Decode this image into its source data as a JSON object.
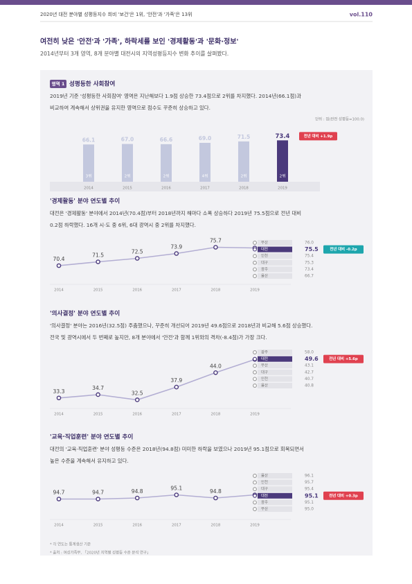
{
  "header": {
    "running_title": "2020년 대전 분야별 성평등지수 희비 '보건'은 1위, '안전'과 '가족'은 13위",
    "volume": "vol.110"
  },
  "article": {
    "title": "여전히 낮은 '안전'과 '가족', 하락세를 보인 '경제활동'과 '문화·정보'",
    "subtitle": "2014년부터 3개 영역, 8개 분야별 대전시의 지역성평등지수 변화 추이를 살펴봤다."
  },
  "sections": [
    {
      "badge": "영역 1",
      "heading": "성평등한 사회참여",
      "body": [
        "2019년 기준 '성평등한 사회참여' 영역은 지난해보다 1.9점 상승한 73.4점으로 2위를 차지했다. 2014년(66.1점)과",
        "비교하여 계속해서 상위권을 유지한 영역으로 점수도 꾸준히 상승하고 있다."
      ],
      "unit": "단위 : 점(완전 성평등=100.0)"
    },
    {
      "heading": "'경제활동' 분야 연도별 추이",
      "body": [
        "대전은 '경제활동' 분야에서 2014년(70.4점)부터 2018년까지 해마다 소폭 상승하다 2019년 75.5점으로 전년 대비",
        "0.2점 하락했다. 16개 시·도 중 6위, 6대 광역시 중 2위를 차지했다."
      ]
    },
    {
      "heading": "'의사결정' 분야 연도별 추이",
      "body": [
        "'의사결정' 분야는 2016년(32.5점) 주춤했으나, 꾸준히 개선되어 2019년 49.6점으로 2018년과 비교해 5.6점 상승했다.",
        "전국 및 광역시에서 두 번째로 높지만, 8개 분야에서 '안전'과 함께 1위와의 격차(-8.4점)가 가장 크다."
      ]
    },
    {
      "heading": "'교육·직업훈련' 분야 연도별 추이",
      "body": [
        "대전의 '교육·직업훈련' 분야 성평등 수준은 2018년(94.8점) 미미한 하락을 보였으나 2019년 95.1점으로 회복되면서",
        "높은 수준을 계속해서 유지하고 있다."
      ]
    }
  ],
  "chart_data": [
    {
      "type": "bar",
      "categories": [
        "2014",
        "2015",
        "2016",
        "2017",
        "2018",
        "2019"
      ],
      "values": [
        66.1,
        67.0,
        66.6,
        69.0,
        71.5,
        73.4
      ],
      "value_labels": [
        "66.1",
        "67.0",
        "66.6",
        "69.0",
        "71.5",
        "73.4"
      ],
      "rank_labels": [
        "3위",
        "2위",
        "2위",
        "4위",
        "2위",
        "2위"
      ],
      "colors": [
        "#c3c8de",
        "#c3c8de",
        "#c3c8de",
        "#c3c8de",
        "#c3c8de",
        "#4b3a7c"
      ],
      "ylim": [
        0,
        80
      ],
      "callout": "전년 대비 +1.9p",
      "callout_color": "#e0414f"
    },
    {
      "type": "line",
      "categories": [
        "2014",
        "2015",
        "2016",
        "2017",
        "2018",
        "2019"
      ],
      "values": [
        70.4,
        71.5,
        72.5,
        73.9,
        75.7,
        75.5
      ],
      "value_labels": [
        "70.4",
        "71.5",
        "72.5",
        "73.9",
        "75.7",
        null
      ],
      "color": "#4b3a7c",
      "line_color": "#b3aed3",
      "ylim": [
        68,
        78
      ],
      "ranking": {
        "regions": [
          "부산",
          "대전",
          "인천",
          "대구",
          "광주",
          "울산"
        ],
        "values": [
          76.0,
          75.5,
          75.4,
          75.3,
          73.4,
          66.7
        ],
        "value_labels": [
          "76.0",
          "75.5",
          "75.4",
          "75.3",
          "73.4",
          "66.7"
        ],
        "colors": [
          "#e3e3e8",
          "#4b3a7c",
          "#e3e3e8",
          "#e3e3e8",
          "#e3e3e8",
          "#e3e3e8"
        ]
      },
      "callout": "전년 대비 -0.2p",
      "callout_color": "#1ea6ad"
    },
    {
      "type": "line",
      "categories": [
        "2014",
        "2015",
        "2016",
        "2017",
        "2018",
        "2019"
      ],
      "values": [
        33.3,
        34.7,
        32.5,
        37.9,
        44.0,
        49.6
      ],
      "value_labels": [
        "33.3",
        "34.7",
        "32.5",
        "37.9",
        "44.0",
        null
      ],
      "color": "#4b3a7c",
      "line_color": "#b3aed3",
      "ylim": [
        30,
        52
      ],
      "ranking": {
        "regions": [
          "광주",
          "대전",
          "부산",
          "대구",
          "인천",
          "울산"
        ],
        "values": [
          58.0,
          49.6,
          43.1,
          42.7,
          40.7,
          40.8
        ],
        "value_labels": [
          "58.0",
          "49.6",
          "43.1",
          "42.7",
          "40.7",
          "40.8"
        ],
        "colors": [
          "#e3e3e8",
          "#4b3a7c",
          "#e3e3e8",
          "#e3e3e8",
          "#e3e3e8",
          "#e3e3e8"
        ]
      },
      "callout": "전년 대비 +5.6p",
      "callout_color": "#e0414f"
    },
    {
      "type": "line",
      "categories": [
        "2014",
        "2015",
        "2016",
        "2017",
        "2018",
        "2019"
      ],
      "values": [
        94.7,
        94.7,
        94.8,
        95.1,
        94.8,
        95.1
      ],
      "value_labels": [
        "94.7",
        "94.7",
        "94.8",
        "95.1",
        "94.8",
        null
      ],
      "color": "#4b3a7c",
      "line_color": "#b3aed3",
      "ylim": [
        94,
        96
      ],
      "ranking": {
        "regions": [
          "울산",
          "인천",
          "대구",
          "대전",
          "광주",
          "부산"
        ],
        "values": [
          96.1,
          95.7,
          95.4,
          95.1,
          95.1,
          95.0
        ],
        "value_labels": [
          "96.1",
          "95.7",
          "95.4",
          "95.1",
          "95.1",
          "95.0"
        ],
        "colors": [
          "#e3e3e8",
          "#e3e3e8",
          "#e3e3e8",
          "#4b3a7c",
          "#e3e3e8",
          "#e3e3e8"
        ]
      },
      "callout": "전년 대비 +0.3p",
      "callout_color": "#e0414f"
    }
  ],
  "notes": [
    "* 각 연도는 통계생산 기준",
    "* 출처 : 여성가족부, 「2020년 지역별 성평등 수준 분석 연구」"
  ]
}
